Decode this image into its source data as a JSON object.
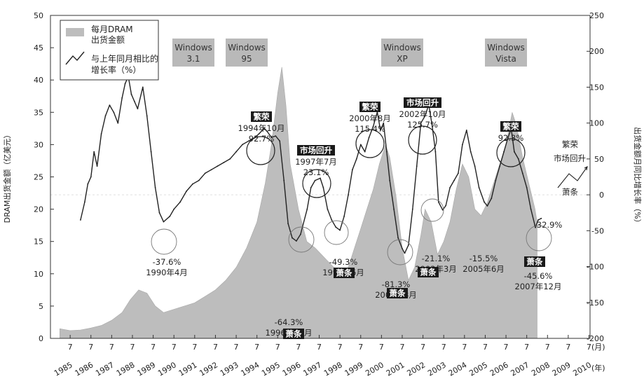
{
  "chart_data": {
    "type": "area",
    "ylabel_left": "DRAM出货金额（亿美元）",
    "ylabel_right": "出货金额月同比增长率（%）",
    "x_month_label": "7",
    "x_unit_month": "(月)",
    "x_unit_year": "(年)",
    "years": [
      "1985",
      "1986",
      "1987",
      "1988",
      "1989",
      "1990",
      "1991",
      "1992",
      "1993",
      "1994",
      "1995",
      "1996",
      "1997",
      "1998",
      "1999",
      "2000",
      "2001",
      "2002",
      "2003",
      "2004",
      "2005",
      "2006",
      "2007",
      "2008",
      "2009",
      "2010"
    ],
    "ylim_left": [
      0,
      50
    ],
    "yticks_left": [
      0,
      5,
      10,
      15,
      20,
      25,
      30,
      35,
      40,
      45,
      50
    ],
    "ylim_right": [
      -200,
      250
    ],
    "yticks_right": [
      -200,
      -150,
      -100,
      -50,
      0,
      50,
      100,
      150,
      200,
      250
    ],
    "legend": {
      "shipment": "每月DRAM出货金额",
      "growth": "与上年同月相比的增长率（%）"
    },
    "series": [
      {
        "name": "每月DRAM出货金额",
        "axis": "left",
        "style": "area",
        "x": [
          1985.0,
          1985.5,
          1986.0,
          1986.5,
          1987.0,
          1987.5,
          1988.0,
          1988.4,
          1988.8,
          1989.2,
          1989.6,
          1990.0,
          1990.5,
          1991.0,
          1991.5,
          1992.0,
          1992.5,
          1993.0,
          1993.5,
          1994.0,
          1994.5,
          1994.9,
          1995.2,
          1995.5,
          1995.7,
          1995.9,
          1996.1,
          1996.5,
          1996.9,
          1997.3,
          1997.6,
          1997.9,
          1998.2,
          1998.6,
          1998.9,
          1999.2,
          1999.5,
          1999.8,
          2000.1,
          2000.4,
          2000.7,
          2000.9,
          2001.2,
          2001.5,
          2001.8,
          2002.1,
          2002.4,
          2002.6,
          2002.9,
          2003.2,
          2003.5,
          2003.8,
          2004.1,
          2004.4,
          2004.7,
          2005.0,
          2005.3,
          2005.6,
          2005.9,
          2006.2,
          2006.5,
          2006.8,
          2007.0,
          2007.3,
          2007.6,
          2007.9,
          2008.0
        ],
        "y": [
          1.5,
          1.2,
          1.3,
          1.6,
          2.0,
          2.8,
          4.0,
          6.0,
          7.5,
          7.0,
          5.0,
          4.0,
          4.5,
          5.0,
          5.5,
          6.5,
          7.5,
          9.0,
          11.0,
          14.0,
          18.0,
          24.0,
          30.0,
          38.0,
          42.0,
          36.0,
          27.0,
          20.0,
          15.0,
          14.0,
          13.0,
          12.0,
          11.0,
          10.0,
          11.0,
          14.0,
          17.0,
          20.0,
          23.0,
          27.0,
          30.0,
          28.0,
          22.0,
          14.0,
          9.0,
          11.0,
          16.0,
          20.0,
          18.0,
          13.0,
          15.0,
          18.0,
          23.0,
          27.0,
          25.0,
          20.0,
          19.0,
          21.0,
          24.0,
          27.0,
          30.0,
          35.0,
          33.0,
          28.0,
          24.0,
          20.0,
          18.0
        ]
      },
      {
        "name": "与上年同月相比的增长率（%）",
        "axis": "right",
        "style": "line",
        "x": [
          1986.0,
          1986.2,
          1986.35,
          1986.5,
          1986.65,
          1986.8,
          1987.0,
          1987.2,
          1987.4,
          1987.6,
          1987.8,
          1988.0,
          1988.15,
          1988.3,
          1988.45,
          1988.6,
          1988.75,
          1989.0,
          1989.2,
          1989.4,
          1989.6,
          1989.8,
          1990.0,
          1990.3,
          1990.5,
          1990.8,
          1991.1,
          1991.4,
          1991.7,
          1992.0,
          1992.3,
          1992.6,
          1992.9,
          1993.2,
          1993.5,
          1993.8,
          1994.1,
          1994.4,
          1994.6,
          1994.85,
          1995.0,
          1995.2,
          1995.4,
          1995.6,
          1995.8,
          1996.0,
          1996.2,
          1996.4,
          1996.6,
          1996.92,
          1997.1,
          1997.3,
          1997.55,
          1997.7,
          1997.9,
          1998.1,
          1998.3,
          1998.5,
          1998.7,
          1998.9,
          1999.1,
          1999.3,
          1999.5,
          1999.7,
          1999.9,
          2000.1,
          2000.3,
          2000.45,
          2000.6,
          2000.75,
          2000.9,
          2001.1,
          2001.3,
          2001.5,
          2001.62,
          2001.8,
          2002.0,
          2002.2,
          2002.4,
          2002.6,
          2002.78,
          2002.95,
          2003.1,
          2003.25,
          2003.45,
          2003.6,
          2003.8,
          2004.0,
          2004.2,
          2004.4,
          2004.6,
          2004.8,
          2005.0,
          2005.2,
          2005.45,
          2005.6,
          2005.8,
          2006.0,
          2006.2,
          2006.4,
          2006.6,
          2006.75,
          2006.9,
          2007.1,
          2007.3,
          2007.5,
          2007.7,
          2007.92,
          2008.05,
          2008.2
        ],
        "y": [
          -35,
          -10,
          15,
          25,
          60,
          40,
          85,
          110,
          125,
          115,
          100,
          135,
          155,
          165,
          140,
          130,
          120,
          150,
          110,
          60,
          10,
          -25,
          -37.6,
          -30,
          -20,
          -10,
          5,
          15,
          20,
          30,
          35,
          40,
          45,
          50,
          60,
          70,
          75,
          80,
          85,
          92.7,
          88,
          80,
          82,
          75,
          20,
          -40,
          -60,
          -64.3,
          -55,
          -20,
          10,
          20,
          23.1,
          10,
          -20,
          -35,
          -45,
          -49.3,
          -30,
          0,
          35,
          50,
          70,
          60,
          80,
          95,
          115.4,
          90,
          100,
          60,
          20,
          -20,
          -60,
          -75,
          -81.3,
          -70,
          -20,
          40,
          100,
          110,
          125.7,
          95,
          60,
          -10,
          -21.1,
          -15,
          10,
          20,
          30,
          70,
          90,
          60,
          40,
          10,
          -10,
          -15.5,
          -5,
          20,
          40,
          60,
          80,
          92.3,
          60,
          50,
          30,
          10,
          -20,
          -45.6,
          -35,
          -32.9
        ]
      }
    ],
    "windows": [
      "Windows\n3.1",
      "Windows\n95",
      "Windows\nXP",
      "Windows\nVista"
    ],
    "annotations": [
      {
        "label": "-37.6%",
        "date": "1990年4月"
      },
      {
        "label": "-64.3%",
        "date": "1996年12月"
      },
      {
        "label": "-49.3%",
        "date": "1998年6月"
      },
      {
        "label": "-81.3%",
        "date": "2001年8月"
      },
      {
        "label": "-21.1%",
        "date": "2003年3月"
      },
      {
        "label": "-15.5%",
        "date": "2005年6月"
      },
      {
        "label": "-45.6%",
        "date": "2007年12月"
      },
      {
        "label": "-32.9%",
        "date": ""
      },
      {
        "label": "92.7%",
        "date": "1994年10月",
        "tag": "繁荣"
      },
      {
        "label": "23.1%",
        "date": "1997年7月",
        "tag": "市场回升"
      },
      {
        "label": "115.4%",
        "date": "2000年8月",
        "tag": "繁荣"
      },
      {
        "label": "125.7%",
        "date": "2002年10月",
        "tag": "市场回升"
      },
      {
        "label": "92.3%",
        "date": "",
        "tag": "繁荣"
      }
    ],
    "tags": {
      "boom": "繁荣",
      "recovery": "市场回升",
      "slump": "萧条"
    },
    "cycle_labels": {
      "boom": "繁荣",
      "recovery": "市场回升",
      "slump": "萧条"
    }
  }
}
